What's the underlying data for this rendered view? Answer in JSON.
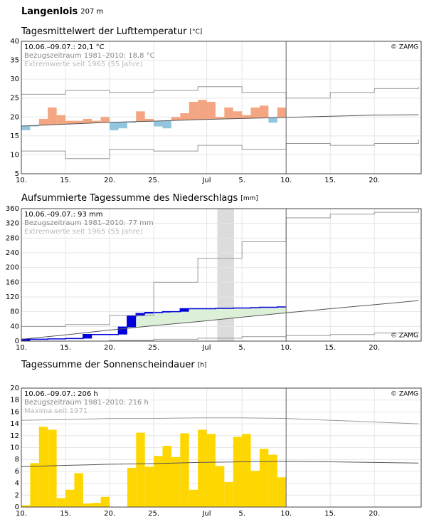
{
  "header": {
    "title": "Langenlois",
    "subtitle": "207 m"
  },
  "chart_data": [
    {
      "type": "bar",
      "title": "Tagesmittelwert der Lufttemperatur",
      "unit": "[°C]",
      "notes": [
        "10.06.–09.07.: 20,1 °C",
        "Bezugszeitraum 1981–2010: 18,8 °C",
        "Extremwerte seit 1965 (55 Jahre)"
      ],
      "source": "© ZAMG",
      "source_corner": "top-right",
      "current_x": 30,
      "xlim": [
        0,
        45.3
      ],
      "xticks": [
        {
          "value": 0,
          "label": "10."
        },
        {
          "value": 5,
          "label": "15."
        },
        {
          "value": 10,
          "label": "20."
        },
        {
          "value": 15,
          "label": "25."
        },
        {
          "value": 21,
          "label": "Jul"
        },
        {
          "value": 25,
          "label": "5."
        },
        {
          "value": 30,
          "label": "10."
        },
        {
          "value": 35,
          "label": "15."
        },
        {
          "value": 40,
          "label": "20."
        }
      ],
      "ylim": [
        5,
        40
      ],
      "yticks": [
        5,
        10,
        15,
        20,
        25,
        30,
        35,
        40
      ],
      "grid": true,
      "series": [
        {
          "type": "bar",
          "baseline": 1,
          "color": "#f4a582",
          "color_below": "#92c5de",
          "x": [
            0,
            1,
            2,
            3,
            4,
            5,
            6,
            7,
            8,
            9,
            10,
            11,
            12,
            13,
            14,
            15,
            16,
            17,
            18,
            19,
            20,
            21,
            22,
            23,
            24,
            25,
            26,
            27,
            28,
            29
          ],
          "values": [
            16.5,
            17.5,
            19.5,
            22.5,
            20.5,
            19,
            19,
            19.5,
            19,
            20,
            16.5,
            17,
            18.5,
            21.5,
            19.5,
            17.5,
            17,
            20,
            21,
            24,
            24.5,
            24,
            20,
            22.5,
            21.5,
            20.5,
            22.5,
            23,
            18.5,
            22.5
          ]
        },
        {
          "type": "line",
          "color": "#555555",
          "x": [
            0,
            5,
            10,
            15,
            20,
            25,
            30,
            35,
            40,
            45
          ],
          "values": [
            17.6,
            18.1,
            18.6,
            18.9,
            19.3,
            19.6,
            19.9,
            20.2,
            20.5,
            20.6
          ]
        },
        {
          "type": "step",
          "color": "#999999",
          "x": [
            0,
            5,
            10,
            15,
            20,
            25,
            30,
            35,
            40,
            45
          ],
          "values": [
            26,
            27,
            26.5,
            27,
            28,
            26.5,
            25,
            26.5,
            27.5,
            28
          ]
        },
        {
          "type": "step",
          "color": "#999999",
          "x": [
            0,
            5,
            10,
            15,
            20,
            25,
            30,
            35,
            40,
            45
          ],
          "values": [
            11,
            9,
            11.5,
            11,
            12.5,
            11.5,
            13,
            12.5,
            13,
            14
          ]
        }
      ]
    },
    {
      "type": "line",
      "title": "Aufsummierte Tagessumme des Niederschlags",
      "unit": "[mm]",
      "notes": [
        "10.06.–09.07.: 93 mm",
        "Bezugszeitraum 1981–2010: 77 mm",
        "Extremwerte seit 1965 (55 Jahre)"
      ],
      "source": "© ZAMG",
      "source_corner": "bottom-right",
      "current_x": 30,
      "highlight_x": [
        22.2,
        24.1
      ],
      "xlim": [
        0,
        45.3
      ],
      "xticks": [
        {
          "value": 0,
          "label": "10."
        },
        {
          "value": 5,
          "label": "15."
        },
        {
          "value": 10,
          "label": "20."
        },
        {
          "value": 15,
          "label": "25."
        },
        {
          "value": 21,
          "label": "Jul"
        },
        {
          "value": 25,
          "label": "5."
        },
        {
          "value": 30,
          "label": "10."
        },
        {
          "value": 35,
          "label": "15."
        },
        {
          "value": 40,
          "label": "20."
        }
      ],
      "ylim": [
        0,
        360
      ],
      "yticks": [
        0,
        40,
        80,
        120,
        160,
        200,
        240,
        280,
        320,
        360
      ],
      "grid": true,
      "series": [
        {
          "type": "cumulative",
          "baseline": 1,
          "color": "#0000dd",
          "surplus_color": "#dcf0d8",
          "x": [
            0,
            1,
            2,
            3,
            4,
            5,
            6,
            7,
            8,
            9,
            10,
            11,
            12,
            13,
            14,
            15,
            16,
            17,
            18,
            19,
            20,
            21,
            22,
            23,
            24,
            25,
            26,
            27,
            28,
            29
          ],
          "values": [
            5,
            5,
            5,
            6,
            6,
            7,
            7,
            18,
            18,
            18,
            18,
            38,
            68,
            75,
            78,
            78,
            80,
            80,
            88,
            88,
            88,
            88,
            89,
            89,
            90,
            90,
            91,
            92,
            92,
            93
          ]
        },
        {
          "type": "line",
          "color": "#555555",
          "x": [
            0,
            5,
            10,
            15,
            20,
            25,
            30,
            35,
            40,
            45
          ],
          "values": [
            5,
            17,
            30,
            42,
            53,
            65,
            77,
            88,
            99,
            110
          ]
        },
        {
          "type": "step",
          "color": "#999999",
          "x": [
            0,
            5,
            10,
            15,
            20,
            25,
            30,
            35,
            40,
            45
          ],
          "values": [
            40,
            45,
            70,
            160,
            225,
            270,
            335,
            345,
            350,
            360
          ]
        },
        {
          "type": "step",
          "color": "#999999",
          "x": [
            0,
            5,
            10,
            15,
            20,
            25,
            30,
            35,
            40,
            45
          ],
          "values": [
            0,
            0,
            2,
            5,
            8,
            12,
            15,
            18,
            22,
            25
          ]
        }
      ]
    },
    {
      "type": "bar",
      "title": "Tagessumme der Sonnenscheindauer",
      "unit": "[h]",
      "notes": [
        "10.06.–09.07.: 206 h",
        "Bezugszeitraum 1981–2010: 216 h",
        "Maxima seit 1971"
      ],
      "source": "© ZAMG",
      "source_corner": "top-right",
      "current_x": 30,
      "xlim": [
        0,
        45.3
      ],
      "xticks": [
        {
          "value": 0,
          "label": "10."
        },
        {
          "value": 5,
          "label": "15."
        },
        {
          "value": 10,
          "label": "20."
        },
        {
          "value": 15,
          "label": "25."
        },
        {
          "value": 21,
          "label": "Jul"
        },
        {
          "value": 25,
          "label": "5."
        },
        {
          "value": 30,
          "label": "10."
        },
        {
          "value": 35,
          "label": "15."
        },
        {
          "value": 40,
          "label": "20."
        }
      ],
      "ylim": [
        0,
        20
      ],
      "yticks": [
        0,
        2,
        4,
        6,
        8,
        10,
        12,
        14,
        16,
        18,
        20
      ],
      "grid": true,
      "series": [
        {
          "type": "bar",
          "color": "#ffd700",
          "x": [
            0,
            1,
            2,
            3,
            4,
            5,
            6,
            7,
            8,
            9,
            10,
            11,
            12,
            13,
            14,
            15,
            16,
            17,
            18,
            19,
            20,
            21,
            22,
            23,
            24,
            25,
            26,
            27,
            28,
            29
          ],
          "values": [
            0.3,
            7.4,
            13.5,
            13.0,
            1.5,
            2.9,
            5.7,
            0.6,
            0.7,
            1.7,
            0,
            0,
            6.6,
            12.5,
            6.8,
            8.6,
            10.3,
            8.4,
            12.4,
            2.9,
            13.0,
            12.3,
            6.9,
            4.2,
            11.8,
            12.3,
            6.1,
            9.8,
            8.8,
            5.0
          ]
        },
        {
          "type": "line",
          "color": "#555555",
          "x": [
            0,
            5,
            10,
            15,
            20,
            25,
            30,
            35,
            40,
            45
          ],
          "values": [
            6.8,
            7.0,
            7.2,
            7.3,
            7.5,
            7.6,
            7.7,
            7.6,
            7.5,
            7.4
          ]
        },
        {
          "type": "line",
          "color": "#999999",
          "x": [
            0,
            5,
            10,
            15,
            20,
            25,
            30,
            35,
            40,
            45
          ],
          "values": [
            14.6,
            14.7,
            14.9,
            14.9,
            15.0,
            15.0,
            14.9,
            14.6,
            14.3,
            14.0
          ]
        }
      ]
    }
  ]
}
